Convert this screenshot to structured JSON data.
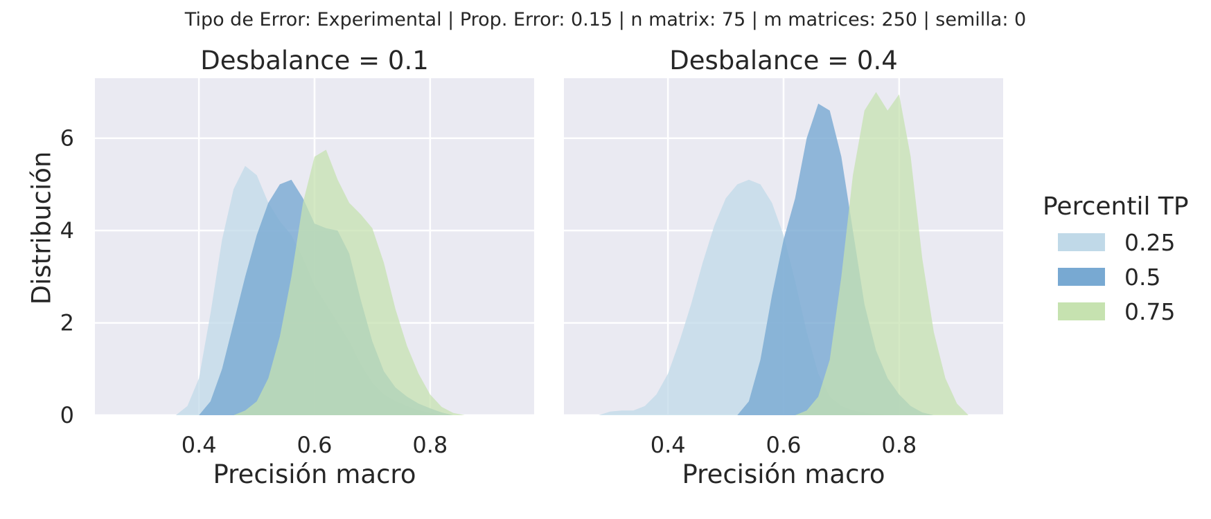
{
  "suptitle": "Tipo de Error: Experimental | Prop. Error: 0.15 | n matrix: 75 | m matrices: 250 | semilla: 0",
  "legend": {
    "title": "Percentil TP",
    "items": [
      {
        "label": "0.25",
        "color": "#c0d9e8"
      },
      {
        "label": "0.5",
        "color": "#78a9d2"
      },
      {
        "label": "0.75",
        "color": "#c6e2b0"
      }
    ]
  },
  "colors": {
    "background": "#eaeaf2",
    "grid": "#ffffff",
    "s025": "#c0d9e8",
    "s05": "#78a9d2",
    "s075": "#c6e2b0"
  },
  "chart_data": [
    {
      "type": "area",
      "title": "Desbalance = 0.1",
      "xlabel": "Precisión macro",
      "ylabel": "Distribución",
      "xlim": [
        0.22,
        0.98
      ],
      "ylim": [
        0,
        7.3
      ],
      "xticks": [
        0.4,
        0.6,
        0.8
      ],
      "yticks": [
        0,
        2,
        4,
        6
      ],
      "xtick_labels": [
        "0.4",
        "0.6",
        "0.8"
      ],
      "ytick_labels": [
        "0",
        "2",
        "4",
        "6"
      ],
      "grid": true,
      "series": [
        {
          "name": "0.25",
          "x": [
            0.36,
            0.38,
            0.4,
            0.42,
            0.44,
            0.46,
            0.48,
            0.5,
            0.52,
            0.54,
            0.56,
            0.58,
            0.6,
            0.62,
            0.64,
            0.66,
            0.68,
            0.7,
            0.72,
            0.74,
            0.76,
            0.78,
            0.8,
            0.82
          ],
          "y": [
            0.0,
            0.2,
            0.8,
            2.2,
            3.8,
            4.9,
            5.4,
            5.2,
            4.6,
            4.2,
            3.9,
            3.4,
            2.8,
            2.4,
            2.0,
            1.6,
            1.1,
            0.7,
            0.45,
            0.3,
            0.2,
            0.1,
            0.05,
            0.0
          ]
        },
        {
          "name": "0.5",
          "x": [
            0.4,
            0.42,
            0.44,
            0.46,
            0.48,
            0.5,
            0.52,
            0.54,
            0.56,
            0.58,
            0.6,
            0.62,
            0.64,
            0.66,
            0.68,
            0.7,
            0.72,
            0.74,
            0.76,
            0.78,
            0.8,
            0.82,
            0.84
          ],
          "y": [
            0.0,
            0.3,
            1.0,
            2.0,
            3.0,
            3.9,
            4.6,
            5.0,
            5.1,
            4.7,
            4.15,
            4.05,
            4.0,
            3.5,
            2.5,
            1.6,
            0.95,
            0.6,
            0.4,
            0.25,
            0.15,
            0.06,
            0.0
          ]
        },
        {
          "name": "0.75",
          "x": [
            0.46,
            0.48,
            0.5,
            0.52,
            0.54,
            0.56,
            0.58,
            0.6,
            0.62,
            0.64,
            0.66,
            0.68,
            0.7,
            0.72,
            0.74,
            0.76,
            0.78,
            0.8,
            0.82,
            0.84,
            0.86
          ],
          "y": [
            0.0,
            0.1,
            0.3,
            0.8,
            1.7,
            3.0,
            4.6,
            5.6,
            5.75,
            5.1,
            4.6,
            4.35,
            4.05,
            3.3,
            2.3,
            1.5,
            0.9,
            0.45,
            0.18,
            0.05,
            0.0
          ]
        }
      ]
    },
    {
      "type": "area",
      "title": "Desbalance = 0.4",
      "xlabel": "Precisión macro",
      "ylabel": "",
      "xlim": [
        0.22,
        0.98
      ],
      "ylim": [
        0,
        7.3
      ],
      "xticks": [
        0.4,
        0.6,
        0.8
      ],
      "yticks": [
        0,
        2,
        4,
        6
      ],
      "xtick_labels": [
        "0.4",
        "0.6",
        "0.8"
      ],
      "ytick_labels": [],
      "grid": true,
      "series": [
        {
          "name": "0.25",
          "x": [
            0.28,
            0.3,
            0.32,
            0.34,
            0.36,
            0.38,
            0.4,
            0.42,
            0.44,
            0.46,
            0.48,
            0.5,
            0.52,
            0.54,
            0.56,
            0.58,
            0.6,
            0.62,
            0.64,
            0.66,
            0.68,
            0.7,
            0.72,
            0.74,
            0.76,
            0.78
          ],
          "y": [
            0.0,
            0.08,
            0.1,
            0.1,
            0.2,
            0.45,
            0.9,
            1.6,
            2.4,
            3.3,
            4.1,
            4.7,
            5.0,
            5.1,
            5.0,
            4.6,
            3.9,
            2.9,
            1.8,
            0.9,
            0.4,
            0.2,
            0.1,
            0.05,
            0.02,
            0.0
          ]
        },
        {
          "name": "0.5",
          "x": [
            0.52,
            0.54,
            0.56,
            0.58,
            0.6,
            0.62,
            0.64,
            0.66,
            0.68,
            0.7,
            0.72,
            0.74,
            0.76,
            0.78,
            0.8,
            0.82,
            0.84,
            0.86
          ],
          "y": [
            0.0,
            0.3,
            1.2,
            2.6,
            3.8,
            4.7,
            6.0,
            6.75,
            6.6,
            5.6,
            4.0,
            2.4,
            1.4,
            0.8,
            0.45,
            0.2,
            0.06,
            0.0
          ]
        },
        {
          "name": "0.75",
          "x": [
            0.62,
            0.64,
            0.66,
            0.68,
            0.7,
            0.72,
            0.74,
            0.76,
            0.78,
            0.8,
            0.82,
            0.84,
            0.86,
            0.88,
            0.9,
            0.92
          ],
          "y": [
            0.0,
            0.1,
            0.4,
            1.2,
            3.0,
            5.2,
            6.6,
            7.0,
            6.6,
            6.95,
            5.6,
            3.4,
            1.8,
            0.8,
            0.25,
            0.0
          ]
        }
      ]
    }
  ]
}
